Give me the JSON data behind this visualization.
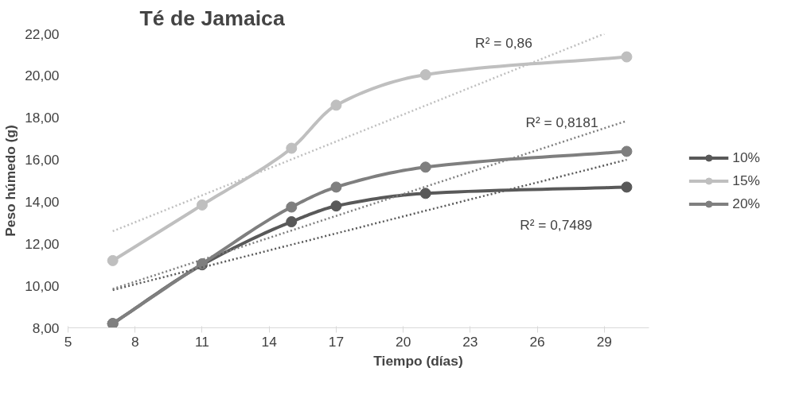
{
  "chart_data": {
    "type": "line",
    "title": "Té de Jamaica",
    "xlabel": "Tiempo (días)",
    "ylabel": "Peso húmedo (g)",
    "xlim": [
      5,
      31
    ],
    "xticks": [
      5,
      8,
      11,
      14,
      17,
      20,
      23,
      26,
      29
    ],
    "ylim": [
      8,
      22
    ],
    "yticks": [
      {
        "value": 8,
        "label": "8,00"
      },
      {
        "value": 10,
        "label": "10,00"
      },
      {
        "value": 12,
        "label": "12,00"
      },
      {
        "value": 14,
        "label": "14,00"
      },
      {
        "value": 16,
        "label": "16,00"
      },
      {
        "value": 18,
        "label": "18,00"
      },
      {
        "value": 20,
        "label": "20,00"
      },
      {
        "value": 22,
        "label": "22,00"
      }
    ],
    "x": [
      7,
      11,
      15,
      17,
      21,
      30
    ],
    "series": [
      {
        "name": "10%",
        "color": "#595959",
        "values": [
          8.2,
          11.0,
          13.05,
          13.8,
          14.4,
          14.7
        ]
      },
      {
        "name": "15%",
        "color": "#bfbfbf",
        "values": [
          11.2,
          13.85,
          16.55,
          18.6,
          20.05,
          20.9
        ]
      },
      {
        "name": "20%",
        "color": "#7f7f7f",
        "values": [
          8.2,
          11.05,
          13.75,
          14.7,
          15.65,
          16.4
        ]
      },
      {
        "type": "line",
        "color": "#595959",
        "line_style": "dotted",
        "marker": "none",
        "x": [
          7,
          30
        ],
        "values": [
          9.8,
          16.0
        ]
      },
      {
        "type": "line",
        "color": "#bfbfbf",
        "line_style": "dotted",
        "marker": "none",
        "x": [
          7,
          29
        ],
        "values": [
          12.6,
          22.0
        ]
      },
      {
        "type": "line",
        "color": "#7f7f7f",
        "line_style": "dotted",
        "marker": "none",
        "x": [
          7,
          30
        ],
        "values": [
          9.85,
          17.85
        ]
      }
    ],
    "annotations": [
      "R² = 0,86",
      "R² = 0,8181",
      "R² = 0,7489"
    ],
    "marker": "circle",
    "line_style": "solid",
    "grid": false,
    "legend": "right"
  }
}
